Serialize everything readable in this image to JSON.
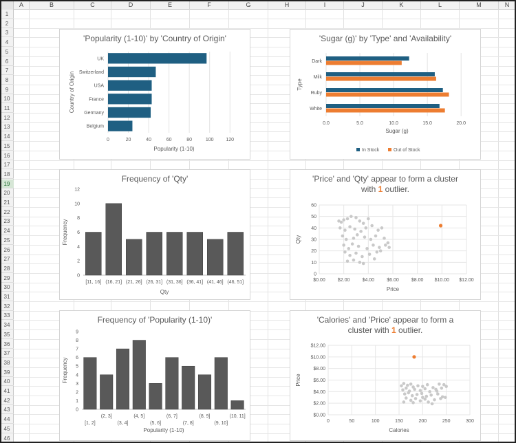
{
  "sheet": {
    "columns": [
      "A",
      "B",
      "C",
      "D",
      "E",
      "F",
      "G",
      "H",
      "I",
      "J",
      "K",
      "L",
      "M",
      "N"
    ],
    "rows": [
      "1",
      "2",
      "3",
      "4",
      "5",
      "6",
      "7",
      "8",
      "9",
      "10",
      "11",
      "12",
      "13",
      "14",
      "15",
      "16",
      "17",
      "18",
      "19",
      "20",
      "21",
      "22",
      "23",
      "24",
      "25",
      "26",
      "27",
      "28",
      "29",
      "30",
      "31",
      "32",
      "33",
      "34",
      "35",
      "36",
      "37",
      "38",
      "39",
      "40",
      "41",
      "42",
      "43",
      "44",
      "45",
      "46"
    ],
    "selected_row": "19"
  },
  "colors": {
    "blue": "#1f5f82",
    "orange": "#ed7d31",
    "dark": "#595959",
    "scatter": "#c9c9c9"
  },
  "chart_data": [
    {
      "id": "chart-popularity-country",
      "type": "bar",
      "title": "'Popularity (1-10)' by 'Country of Origin'",
      "xlabel": "Popularity (1-10)",
      "ylabel": "Country of Origin",
      "categories": [
        "UK",
        "Switzerland",
        "USA",
        "France",
        "Germany",
        "Belgium"
      ],
      "values": [
        97,
        47,
        43,
        43,
        42,
        24
      ],
      "xlim": [
        0,
        130
      ],
      "xticks": [
        "0",
        "20",
        "40",
        "60",
        "80",
        "100",
        "120"
      ],
      "grid": true
    },
    {
      "id": "chart-sugar-type",
      "type": "bar",
      "title": "'Sugar (g)' by 'Type' and 'Availability'",
      "xlabel": "Sugar (g)",
      "ylabel": "Type",
      "categories": [
        "Dark",
        "Milk",
        "Ruby",
        "White"
      ],
      "series": [
        {
          "name": "In Stock",
          "values": [
            12.3,
            16.1,
            17.3,
            16.8
          ]
        },
        {
          "name": "Out of Stock",
          "values": [
            11.2,
            16.3,
            18.2,
            17.6
          ]
        }
      ],
      "xlim": [
        0,
        21
      ],
      "xticks": [
        "0.0",
        "5.0",
        "10.0",
        "15.0",
        "20.0"
      ],
      "legend": "bottom",
      "grid": true
    },
    {
      "id": "chart-freq-qty",
      "type": "bar",
      "title": "Frequency of 'Qty'",
      "xlabel": "Qty",
      "ylabel": "Frequency",
      "categories": [
        "[11, 16]",
        "(16, 21]",
        "(21, 26]",
        "(26, 31]",
        "(31, 36]",
        "(36, 41]",
        "(41, 46]",
        "(46, 51]"
      ],
      "values": [
        6,
        10,
        5,
        6,
        6,
        6,
        5,
        6
      ],
      "ylim": [
        0,
        12
      ],
      "yticks": [
        "0",
        "2",
        "4",
        "6",
        "8",
        "10",
        "12"
      ]
    },
    {
      "id": "chart-price-qty",
      "type": "scatter",
      "title_parts": [
        "'Price' and 'Qty' appear to form a cluster",
        "with ",
        "1",
        " outlier."
      ],
      "xlabel": "Price",
      "ylabel": "Qty",
      "xlim": [
        0,
        12
      ],
      "ylim": [
        0,
        60
      ],
      "xticks": [
        "$0.00",
        "$2.00",
        "$4.00",
        "$6.00",
        "$8.00",
        "$10.00",
        "$12.00"
      ],
      "yticks": [
        "0",
        "10",
        "20",
        "30",
        "40",
        "50",
        "60"
      ],
      "points": [
        [
          1.6,
          46
        ],
        [
          1.8,
          45
        ],
        [
          2.0,
          47
        ],
        [
          2.3,
          48
        ],
        [
          2.6,
          50
        ],
        [
          3.0,
          49
        ],
        [
          3.3,
          46
        ],
        [
          3.6,
          44
        ],
        [
          4.0,
          48
        ],
        [
          1.7,
          40
        ],
        [
          2.1,
          38
        ],
        [
          2.5,
          41
        ],
        [
          2.9,
          39
        ],
        [
          3.4,
          37
        ],
        [
          3.8,
          40
        ],
        [
          4.3,
          42
        ],
        [
          4.8,
          38
        ],
        [
          5.1,
          40
        ],
        [
          1.9,
          33
        ],
        [
          2.2,
          30
        ],
        [
          2.8,
          31
        ],
        [
          3.1,
          34
        ],
        [
          3.7,
          32
        ],
        [
          4.2,
          30
        ],
        [
          4.6,
          33
        ],
        [
          5.3,
          31
        ],
        [
          5.6,
          27
        ],
        [
          2.0,
          25
        ],
        [
          2.4,
          22
        ],
        [
          2.7,
          26
        ],
        [
          3.2,
          24
        ],
        [
          3.9,
          22
        ],
        [
          4.4,
          25
        ],
        [
          4.9,
          23
        ],
        [
          5.4,
          25
        ],
        [
          5.7,
          23
        ],
        [
          2.1,
          19
        ],
        [
          2.5,
          16
        ],
        [
          3.0,
          18
        ],
        [
          3.5,
          15
        ],
        [
          4.1,
          17
        ],
        [
          4.7,
          19
        ],
        [
          5.0,
          20
        ],
        [
          2.3,
          11
        ],
        [
          2.8,
          12
        ],
        [
          3.3,
          10
        ],
        [
          3.6,
          9
        ],
        [
          4.5,
          13
        ]
      ],
      "outliers": [
        [
          9.9,
          42
        ]
      ]
    },
    {
      "id": "chart-freq-popularity",
      "type": "bar",
      "title": "Frequency of 'Popularity (1-10)'",
      "xlabel": "Popularity (1-10)",
      "ylabel": "Frequency",
      "categories": [
        "[1, 2]",
        "(2, 3]",
        "(3, 4]",
        "(4, 5]",
        "(5, 6]",
        "(6, 7]",
        "(7, 8]",
        "(8, 9]",
        "(9, 10]",
        "(10, 11]"
      ],
      "values": [
        6,
        4,
        7,
        8,
        3,
        6,
        5,
        4,
        6,
        1
      ],
      "ylim": [
        0,
        9
      ],
      "yticks": [
        "0",
        "1",
        "2",
        "3",
        "4",
        "5",
        "6",
        "7",
        "8",
        "9"
      ]
    },
    {
      "id": "chart-calories-price",
      "type": "scatter",
      "title_parts": [
        "'Calories' and 'Price' appear to form a",
        "cluster with ",
        "1",
        " outlier."
      ],
      "xlabel": "Calories",
      "ylabel": "Price",
      "xlim": [
        0,
        300
      ],
      "ylim": [
        0,
        12
      ],
      "xticks": [
        "0",
        "50",
        "100",
        "150",
        "200",
        "250",
        "300"
      ],
      "yticks": [
        "$0.00",
        "$2.00",
        "$4.00",
        "$6.00",
        "$8.00",
        "$10.00",
        "$12.00"
      ],
      "points": [
        [
          155,
          5.0
        ],
        [
          160,
          5.4
        ],
        [
          168,
          5.1
        ],
        [
          175,
          5.3
        ],
        [
          180,
          4.8
        ],
        [
          190,
          5.0
        ],
        [
          200,
          4.9
        ],
        [
          210,
          5.2
        ],
        [
          222,
          4.7
        ],
        [
          235,
          5.3
        ],
        [
          245,
          5.2
        ],
        [
          158,
          4.3
        ],
        [
          165,
          4.6
        ],
        [
          172,
          4.1
        ],
        [
          183,
          4.4
        ],
        [
          195,
          4.2
        ],
        [
          205,
          4.5
        ],
        [
          215,
          4.0
        ],
        [
          228,
          4.4
        ],
        [
          240,
          4.6
        ],
        [
          250,
          4.9
        ],
        [
          162,
          3.6
        ],
        [
          170,
          3.8
        ],
        [
          178,
          3.3
        ],
        [
          188,
          3.5
        ],
        [
          198,
          3.7
        ],
        [
          208,
          3.2
        ],
        [
          218,
          3.4
        ],
        [
          232,
          3.6
        ],
        [
          242,
          3.1
        ],
        [
          165,
          2.9
        ],
        [
          175,
          2.5
        ],
        [
          185,
          2.8
        ],
        [
          195,
          2.4
        ],
        [
          205,
          2.7
        ],
        [
          212,
          2.2
        ],
        [
          225,
          2.6
        ],
        [
          238,
          2.8
        ],
        [
          248,
          3.0
        ],
        [
          180,
          2.1
        ],
        [
          220,
          1.9
        ],
        [
          160,
          2.2
        ],
        [
          200,
          3.0
        ],
        [
          230,
          4.1
        ]
      ],
      "outliers": [
        [
          182,
          10.0
        ]
      ]
    }
  ]
}
